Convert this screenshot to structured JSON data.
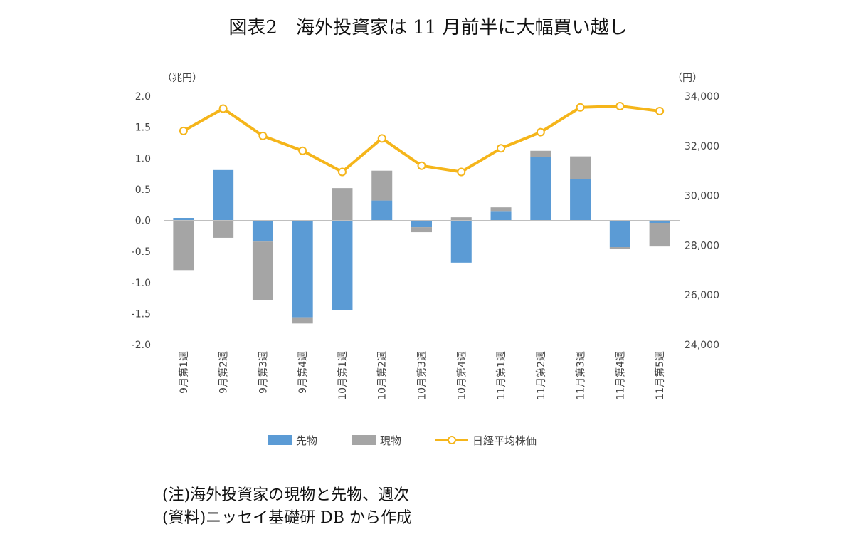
{
  "title": "図表2　海外投資家は 11 月前半に大幅買い越し",
  "notes": [
    "(注)海外投資家の現物と先物、週次",
    "(資料)ニッセイ基礎研 DB から作成"
  ],
  "chart_data": {
    "type": "bar",
    "stacked": true,
    "categories": [
      "9月第1週",
      "9月第2週",
      "9月第3週",
      "9月第4週",
      "10月第1週",
      "10月第2週",
      "10月第3週",
      "10月第4週",
      "11月第1週",
      "11月第2週",
      "11月第3週",
      "11月第4週",
      "11月第5週"
    ],
    "series": [
      {
        "name": "先物",
        "type": "bar",
        "axis": "left",
        "color": "#5b9bd5",
        "values": [
          0.04,
          0.81,
          -0.34,
          -1.56,
          -1.44,
          0.32,
          -0.11,
          -0.68,
          0.14,
          1.02,
          0.66,
          -0.43,
          -0.04
        ]
      },
      {
        "name": "現物",
        "type": "bar",
        "axis": "left",
        "color": "#a5a5a5",
        "values": [
          -0.8,
          -0.28,
          -0.94,
          -0.1,
          0.52,
          0.48,
          -0.08,
          0.05,
          0.07,
          0.1,
          0.37,
          -0.03,
          -0.38
        ]
      },
      {
        "name": "日経平均株価",
        "type": "line",
        "axis": "right",
        "color": "#f5b51a",
        "values": [
          32600,
          33500,
          32400,
          31800,
          30950,
          32300,
          31200,
          30950,
          31900,
          32550,
          33550,
          33600,
          33400
        ]
      }
    ],
    "ylabel_left": "（兆円）",
    "ylabel_right": "（円）",
    "ylim_left": [
      -2.0,
      2.0
    ],
    "yticks_left": [
      "2.0",
      "1.5",
      "1.0",
      "0.5",
      "0.0",
      "-0.5",
      "-1.0",
      "-1.5",
      "-2.0"
    ],
    "ylim_right": [
      24000,
      34000
    ],
    "yticks_right": [
      "34,000",
      "32,000",
      "30,000",
      "28,000",
      "26,000",
      "24,000"
    ],
    "legend_position": "bottom",
    "grid": false
  }
}
